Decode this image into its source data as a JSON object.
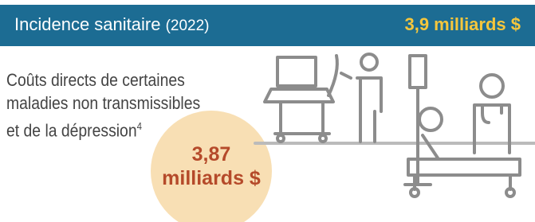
{
  "header": {
    "title": "Incidence sanitaire",
    "year": "(2022)",
    "value": "3,9 milliards $"
  },
  "description": {
    "lines": [
      "Coûts directs de certaines",
      "maladies non transmissibles",
      "et de la dépression"
    ],
    "footnote": "4"
  },
  "highlight": {
    "number": "3,87",
    "unit": "milliards $"
  }
}
